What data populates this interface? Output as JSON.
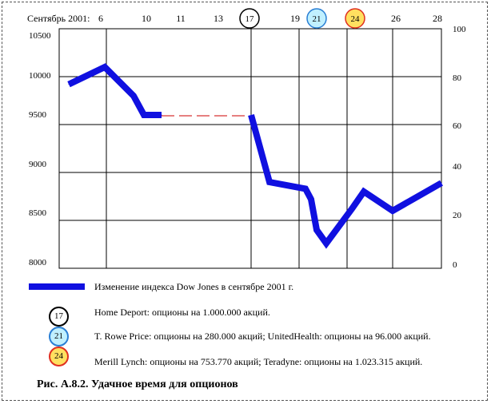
{
  "chart_data": {
    "type": "line",
    "x_prefix": "Сентябрь 2001:",
    "x_ticks": [
      "6",
      "10",
      "11",
      "13",
      "17",
      "19",
      "21",
      "24",
      "26",
      "28"
    ],
    "y_left": {
      "ticks": [
        "10500",
        "10000",
        "9500",
        "9000",
        "8500",
        "8000"
      ],
      "ylim": [
        8000,
        10500
      ]
    },
    "y_right": {
      "ticks": [
        "100",
        "80",
        "60",
        "40",
        "20",
        "0"
      ],
      "ylim": [
        0,
        100
      ]
    },
    "grid": true,
    "series": [
      {
        "name": "Изменение индекса Dow Jones в сентябре 2001 г.",
        "color": "#1010e0",
        "points": [
          {
            "x": 4,
            "y": 9920
          },
          {
            "x": 6,
            "y": 10100
          },
          {
            "x": 8,
            "y": 9800
          },
          {
            "x": 9,
            "y": 9600
          },
          {
            "x": 10,
            "y": 9600
          }
        ]
      },
      {
        "name": "",
        "color": "#1010e0",
        "points": [
          {
            "x": 17,
            "y": 9600
          },
          {
            "x": 18,
            "y": 8900
          },
          {
            "x": 20,
            "y": 8830
          },
          {
            "x": 20.5,
            "y": 8720
          },
          {
            "x": 21,
            "y": 8400
          },
          {
            "x": 21.5,
            "y": 8260
          },
          {
            "x": 23,
            "y": 8620
          },
          {
            "x": 24,
            "y": 8800
          },
          {
            "x": 26,
            "y": 8600
          },
          {
            "x": 28,
            "y": 8890
          }
        ]
      }
    ],
    "gap_line": {
      "from": {
        "x": 10,
        "y": 9600
      },
      "to": {
        "x": 17,
        "y": 9600
      },
      "color": "#cc0000",
      "style": "dashed"
    },
    "markers": [
      {
        "day": "17",
        "label": "17",
        "fill": "#ffffff",
        "border": "#000000"
      },
      {
        "day": "21",
        "label": "21",
        "fill": "#c0f0ff",
        "border": "#2a7fd4"
      },
      {
        "day": "24",
        "label": "24",
        "fill": "#ffe060",
        "border": "#e03020"
      }
    ]
  },
  "legend": {
    "dow_jones": "Изменение индекса Dow Jones в сентябре 2001 г.",
    "home_depot": "Home Deport: опционы на 1.000.000 акций.",
    "t_rowe": "T. Rowe Price: опционы на 280.000 акций; UnitedHealth: опционы на 96.000 акций.",
    "merill": "Merill Lynch: опционы на 753.770 акций; Teradyne: опционы на 1.023.315 акций."
  },
  "caption": "Рис. А.8.2. Удачное время для опционов"
}
